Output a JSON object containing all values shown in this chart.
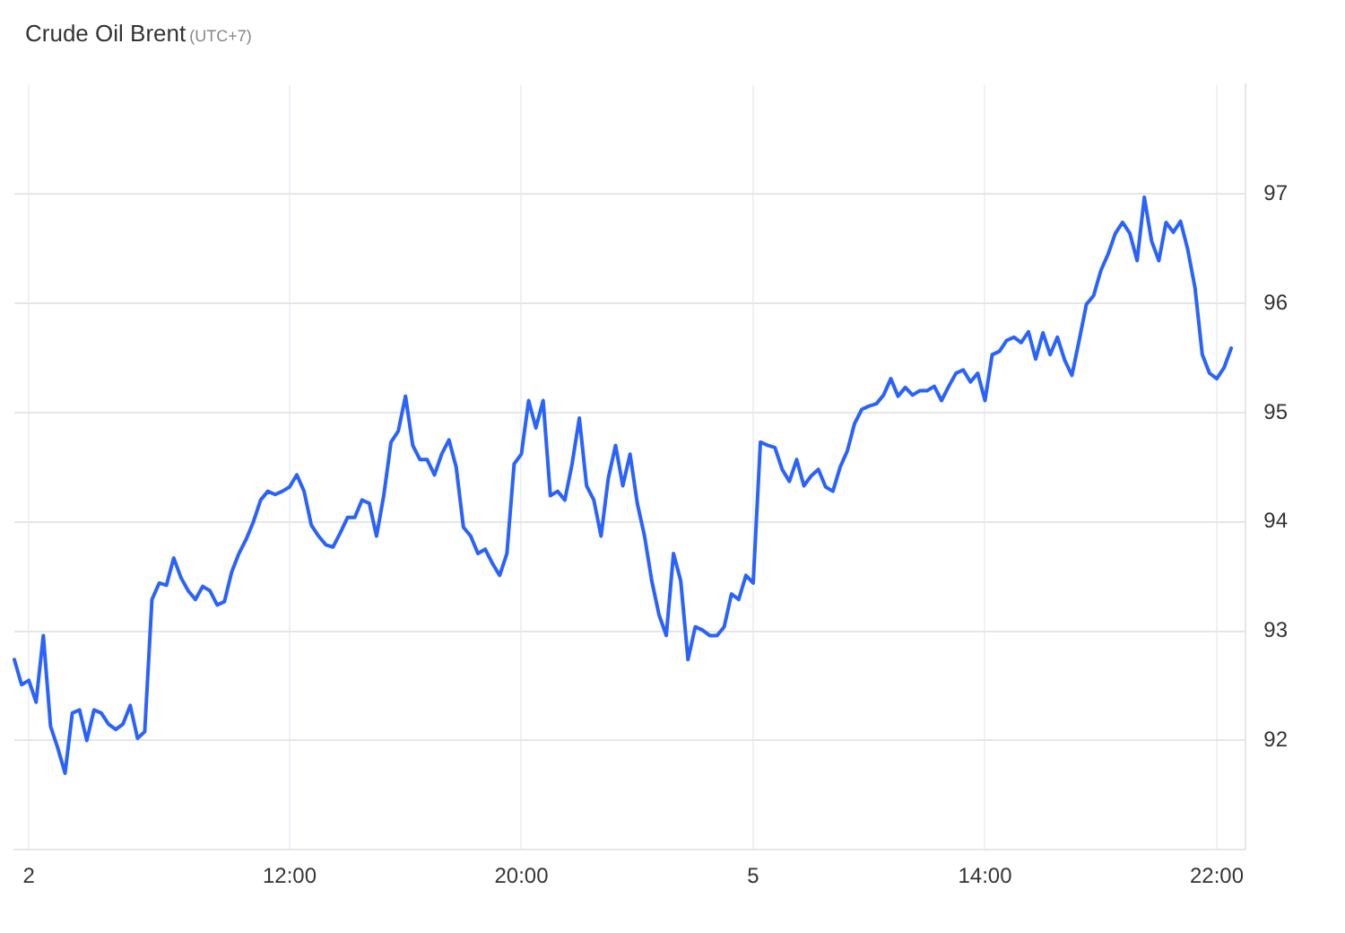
{
  "chart_data": {
    "type": "line",
    "title": "Crude Oil Brent",
    "subtitle": "(UTC+7)",
    "categories": [
      null,
      null,
      "2",
      null,
      null,
      null,
      null,
      null,
      null,
      null,
      null,
      null,
      null,
      null,
      null,
      null,
      null,
      null,
      null,
      null,
      null,
      null,
      null,
      null,
      null,
      null,
      null,
      null,
      null,
      null,
      null,
      null,
      null,
      null,
      null,
      null,
      null,
      null,
      "12:00",
      null,
      null,
      null,
      null,
      null,
      null,
      null,
      null,
      null,
      null,
      null,
      null,
      null,
      null,
      null,
      null,
      null,
      null,
      null,
      null,
      null,
      null,
      null,
      null,
      null,
      null,
      null,
      null,
      null,
      null,
      null,
      "20:00",
      null,
      null,
      null,
      null,
      null,
      null,
      null,
      null,
      null,
      null,
      null,
      null,
      null,
      null,
      null,
      null,
      null,
      null,
      null,
      null,
      null,
      null,
      null,
      null,
      null,
      null,
      null,
      null,
      null,
      null,
      null,
      "5",
      null,
      null,
      null,
      null,
      null,
      null,
      null,
      null,
      null,
      null,
      null,
      null,
      null,
      null,
      null,
      null,
      null,
      null,
      null,
      null,
      null,
      null,
      null,
      null,
      null,
      null,
      null,
      null,
      null,
      null,
      null,
      "14:00",
      null,
      null,
      null,
      null,
      null,
      null,
      null,
      null,
      null,
      null,
      null,
      null,
      null,
      null,
      null,
      null,
      null,
      null,
      null,
      null,
      null,
      null,
      null,
      null,
      null,
      null,
      null,
      null,
      null,
      null,
      null,
      "22:00",
      null,
      null,
      null,
      null
    ],
    "ylim": [
      91,
      98
    ],
    "yticks": [
      92,
      93,
      94,
      95,
      96,
      97
    ],
    "grid": true,
    "legend": false,
    "marker": "none",
    "line_style": "solid",
    "series": [
      {
        "color": "#2962ff",
        "values": [
          92.74,
          92.51,
          92.55,
          92.35,
          92.96,
          92.13,
          91.93,
          91.7,
          92.25,
          92.28,
          92.0,
          92.28,
          92.25,
          92.15,
          92.1,
          92.15,
          92.32,
          92.02,
          92.08,
          93.29,
          93.44,
          93.42,
          93.67,
          93.49,
          93.37,
          93.29,
          93.41,
          93.37,
          93.24,
          93.27,
          93.54,
          93.71,
          93.84,
          94.0,
          94.2,
          94.28,
          94.25,
          94.28,
          94.32,
          94.43,
          94.28,
          93.97,
          93.87,
          93.79,
          93.77,
          93.9,
          94.04,
          94.04,
          94.2,
          94.17,
          93.87,
          94.24,
          94.73,
          94.83,
          95.15,
          94.7,
          94.57,
          94.57,
          94.43,
          94.62,
          94.75,
          94.5,
          93.95,
          93.87,
          93.71,
          93.75,
          93.62,
          93.51,
          93.71,
          94.53,
          94.62,
          95.11,
          94.86,
          95.11,
          94.24,
          94.28,
          94.2,
          94.53,
          94.95,
          94.33,
          94.2,
          93.87,
          94.4,
          94.7,
          94.33,
          94.62,
          94.17,
          93.87,
          93.46,
          93.15,
          92.96,
          93.71,
          93.46,
          92.74,
          93.04,
          93.01,
          92.96,
          92.96,
          93.04,
          93.34,
          93.29,
          93.51,
          93.44,
          94.73,
          94.7,
          94.68,
          94.48,
          94.37,
          94.57,
          94.33,
          94.42,
          94.48,
          94.32,
          94.28,
          94.5,
          94.65,
          94.9,
          95.03,
          95.06,
          95.08,
          95.16,
          95.31,
          95.15,
          95.23,
          95.16,
          95.2,
          95.2,
          95.24,
          95.11,
          95.24,
          95.36,
          95.39,
          95.28,
          95.36,
          95.11,
          95.53,
          95.56,
          95.66,
          95.69,
          95.64,
          95.74,
          95.49,
          95.73,
          95.53,
          95.69,
          95.48,
          95.34,
          95.66,
          95.99,
          96.07,
          96.3,
          96.45,
          96.64,
          96.74,
          96.64,
          96.39,
          96.97,
          96.57,
          96.39,
          96.74,
          96.65,
          96.75,
          96.49,
          96.14,
          95.53,
          95.36,
          95.31,
          95.41,
          95.59,
          null,
          null
        ]
      }
    ]
  }
}
